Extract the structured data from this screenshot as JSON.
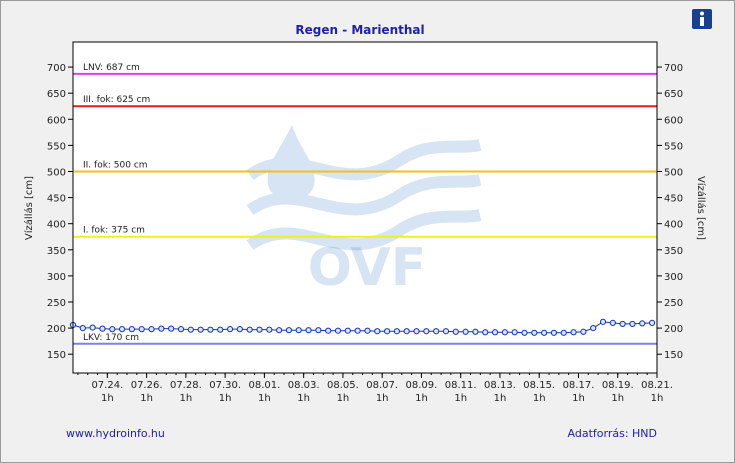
{
  "chart_data": {
    "type": "line",
    "title": "Regen - Marienthal",
    "y_label": "Vízállás [cm]",
    "y2_label": "Vízállás [cm]",
    "footer_left": "www.hydroinfo.hu",
    "footer_right": "Adatforrás: HND",
    "watermark": "OVF",
    "xlim": [
      -1.75,
      28
    ],
    "ylim": [
      114,
      748
    ],
    "y2lim": [
      114,
      748
    ],
    "yticks": [
      150,
      200,
      250,
      300,
      350,
      400,
      450,
      500,
      550,
      600,
      650,
      700
    ],
    "y2ticks": [
      150,
      200,
      250,
      300,
      350,
      400,
      450,
      500,
      550,
      600,
      650,
      700
    ],
    "xticks": [
      {
        "value": 0,
        "label": "07.24.\n1h"
      },
      {
        "value": 2,
        "label": "07.26.\n1h"
      },
      {
        "value": 4,
        "label": "07.28.\n1h"
      },
      {
        "value": 6,
        "label": "07.30.\n1h"
      },
      {
        "value": 8,
        "label": "08.01.\n1h"
      },
      {
        "value": 10,
        "label": "08.03.\n1h"
      },
      {
        "value": 12,
        "label": "08.05.\n1h"
      },
      {
        "value": 14,
        "label": "08.07.\n1h"
      },
      {
        "value": 16,
        "label": "08.09.\n1h"
      },
      {
        "value": 18,
        "label": "08.11.\n1h"
      },
      {
        "value": 20,
        "label": "08.13.\n1h"
      },
      {
        "value": 22,
        "label": "08.15.\n1h"
      },
      {
        "value": 24,
        "label": "08.17.\n1h"
      },
      {
        "value": 26,
        "label": "08.19.\n1h"
      },
      {
        "value": 28,
        "label": "08.21.\n1h"
      }
    ],
    "thresholds": [
      {
        "value": 687,
        "label": "LNV: 687 cm",
        "color": "#e040e0"
      },
      {
        "value": 625,
        "label": "III. fok: 625 cm",
        "color": "#e02020"
      },
      {
        "value": 500,
        "label": "II. fok: 500 cm",
        "color": "#f0c020"
      },
      {
        "value": 375,
        "label": "I. fok: 375 cm",
        "color": "#f0f020"
      },
      {
        "value": 170,
        "label": "LKV: 170 cm",
        "color": "#8080e0"
      }
    ],
    "x": [
      -1.75,
      -1.25,
      -0.75,
      -0.25,
      0.25,
      0.75,
      1.25,
      1.75,
      2.25,
      2.75,
      3.25,
      3.75,
      4.25,
      4.75,
      5.25,
      5.75,
      6.25,
      6.75,
      7.25,
      7.75,
      8.25,
      8.75,
      9.25,
      9.75,
      10.25,
      10.75,
      11.25,
      11.75,
      12.25,
      12.75,
      13.25,
      13.75,
      14.25,
      14.75,
      15.25,
      15.75,
      16.25,
      16.75,
      17.25,
      17.75,
      18.25,
      18.75,
      19.25,
      19.75,
      20.25,
      20.75,
      21.25,
      21.75,
      22.25,
      22.75,
      23.25,
      23.75,
      24.25,
      24.75,
      25.25,
      25.75,
      26.25,
      26.75,
      27.25,
      27.75
    ],
    "series": [
      {
        "color": "#1030c0",
        "values": [
          206,
          200,
          201,
          199,
          198,
          198,
          198,
          198,
          198,
          199,
          199,
          198,
          197,
          197,
          197,
          197,
          198,
          198,
          197,
          197,
          197,
          196,
          196,
          196,
          196,
          196,
          195,
          195,
          195,
          195,
          195,
          194,
          194,
          194,
          194,
          194,
          194,
          194,
          194,
          193,
          193,
          193,
          192,
          192,
          192,
          192,
          191,
          191,
          191,
          191,
          191,
          192,
          193,
          200,
          212,
          210,
          208,
          208,
          209,
          210
        ]
      }
    ]
  }
}
